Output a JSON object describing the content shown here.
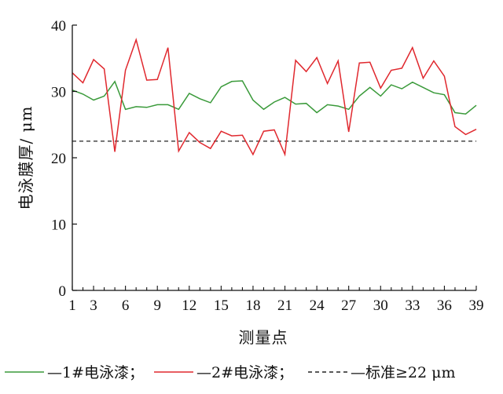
{
  "chart_data": {
    "type": "line",
    "xlabel": "测量点",
    "ylabel": "电泳膜厚/ μm",
    "xlim": [
      1,
      39
    ],
    "ylim": [
      0,
      40
    ],
    "xticks": [
      1,
      3,
      6,
      9,
      12,
      15,
      18,
      21,
      24,
      27,
      30,
      33,
      36,
      39
    ],
    "yticks": [
      0,
      10,
      20,
      30,
      40
    ],
    "grid": false,
    "legend_position": "bottom",
    "x": [
      1,
      2,
      3,
      4,
      5,
      6,
      7,
      8,
      9,
      10,
      11,
      12,
      13,
      14,
      15,
      16,
      17,
      18,
      19,
      20,
      21,
      22,
      23,
      24,
      25,
      26,
      27,
      28,
      29,
      30,
      31,
      32,
      33,
      34,
      35,
      36,
      37,
      38,
      39
    ],
    "series": [
      {
        "name": "—1#电泳漆；",
        "color": "#3a9a3a",
        "values": [
          30.2,
          29.6,
          28.7,
          29.3,
          31.5,
          27.3,
          27.7,
          27.6,
          28.0,
          28.0,
          27.3,
          29.7,
          28.9,
          28.3,
          30.7,
          31.5,
          31.6,
          28.7,
          27.3,
          28.4,
          29.1,
          28.1,
          28.2,
          26.8,
          28.0,
          27.8,
          27.3,
          29.3,
          30.6,
          29.3,
          31.0,
          30.4,
          31.4,
          30.6,
          29.8,
          29.5,
          26.8,
          26.6,
          27.9
        ]
      },
      {
        "name": "—2#电泳漆；",
        "color": "#e0282e",
        "values": [
          32.8,
          31.3,
          34.8,
          33.4,
          20.9,
          33.2,
          37.8,
          31.7,
          31.8,
          36.6,
          21.0,
          23.8,
          22.3,
          21.4,
          24.0,
          23.3,
          23.4,
          20.5,
          24.0,
          24.2,
          20.5,
          34.7,
          33.0,
          35.1,
          31.2,
          34.6,
          23.9,
          34.3,
          34.4,
          30.5,
          33.2,
          33.5,
          36.6,
          32.0,
          34.6,
          32.3,
          24.7,
          23.5,
          24.3
        ]
      },
      {
        "name": "—标准≥22 μm",
        "color": "#222222",
        "dashed": true,
        "values": [
          22.5,
          22.5,
          22.5,
          22.5,
          22.5,
          22.5,
          22.5,
          22.5,
          22.5,
          22.5,
          22.5,
          22.5,
          22.5,
          22.5,
          22.5,
          22.5,
          22.5,
          22.5,
          22.5,
          22.5,
          22.5,
          22.5,
          22.5,
          22.5,
          22.5,
          22.5,
          22.5,
          22.5,
          22.5,
          22.5,
          22.5,
          22.5,
          22.5,
          22.5,
          22.5,
          22.5,
          22.5,
          22.5,
          22.5
        ]
      }
    ]
  }
}
